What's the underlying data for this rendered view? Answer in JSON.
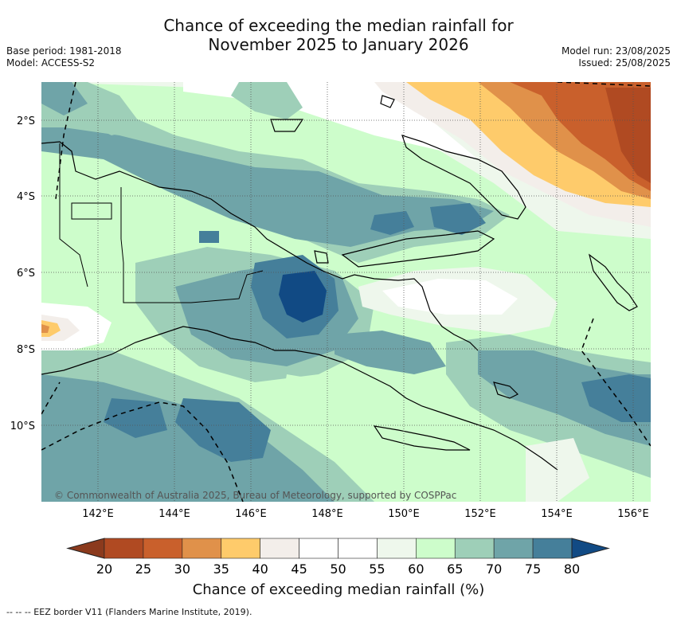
{
  "title": {
    "line1": "Chance of exceeding the median rainfall for",
    "line2": "November 2025 to January 2026"
  },
  "meta_left": {
    "base_period": "Base period: 1981-2018",
    "model": "Model: ACCESS-S2"
  },
  "meta_right": {
    "model_run": "Model run: 23/08/2025",
    "issued": "Issued: 25/08/2025"
  },
  "map": {
    "lat_labels": [
      "2°S",
      "4°S",
      "6°S",
      "8°S",
      "10°S"
    ],
    "lon_labels": [
      "142°E",
      "144°E",
      "146°E",
      "148°E",
      "150°E",
      "152°E",
      "154°E",
      "156°E"
    ],
    "copyright": "© Commonwealth of Australia 2025, Bureau of Meteorology, supported by COSPPac"
  },
  "colorbar": {
    "ticks": [
      "20",
      "25",
      "30",
      "35",
      "40",
      "45",
      "50",
      "55",
      "60",
      "65",
      "70",
      "75",
      "80"
    ],
    "colors": [
      "#b04a22",
      "#c9602c",
      "#e0914a",
      "#fecb6b",
      "#f3eeea",
      "#ffffff",
      "#ffffff",
      "#eef7ec",
      "#cdfdcb",
      "#9ecfb8",
      "#6fa4a8",
      "#457f9a"
    ],
    "under_color": "#8b3a1d",
    "over_color": "#114a84",
    "label": "Chance of exceeding median rainfall (%)"
  },
  "legend": {
    "eez": "-- -- -- EEZ border V11 (Flanders Marine Institute, 2019)."
  }
}
